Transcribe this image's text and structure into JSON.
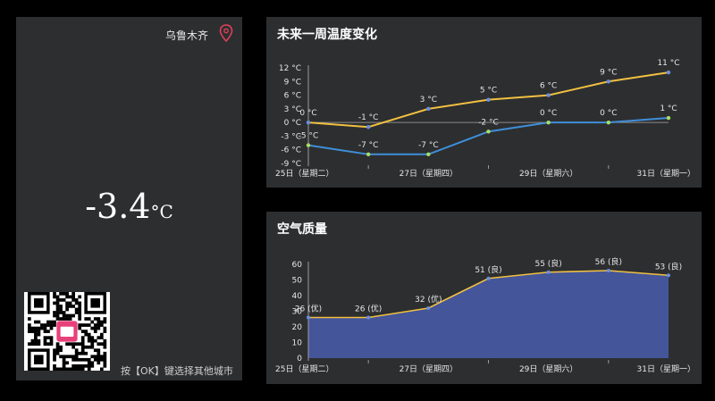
{
  "city": "乌鲁木齐",
  "current_temp": {
    "value": "-3.4",
    "unit": "°C"
  },
  "hint": "按【OK】键选择其他城市",
  "forecast": {
    "title": "未来一周温度变化"
  },
  "air": {
    "title": "空气质量"
  },
  "colors": {
    "high_line": "#f0c040",
    "low_line": "#3f8fd8",
    "aqi_fill": "#44559a",
    "aqi_line": "#f0c040",
    "panel": "#2d2e30"
  },
  "icons": {
    "location": "location-pin-icon",
    "qr": "qr-code"
  },
  "chart_data": [
    {
      "type": "line",
      "title": "未来一周温度变化",
      "x_tick_labels": [
        "25日（星期二）",
        "27日（星期四）",
        "29日（星期六）",
        "31日（星期一）"
      ],
      "y_tick_labels": [
        "12 °C",
        "9 °C",
        "6 °C",
        "3 °C",
        "0 °C",
        "-3 °C",
        "-6 °C",
        "-9 °C"
      ],
      "ylim": [
        -9,
        12
      ],
      "series": [
        {
          "values": [
            0,
            -1,
            3,
            5,
            6,
            9,
            11
          ],
          "labels": [
            "0 °C",
            "-1 °C",
            "3 °C",
            "5 °C",
            "6 °C",
            "9 °C",
            "11 °C"
          ]
        },
        {
          "values": [
            -5,
            -7,
            -7,
            -2,
            0,
            0,
            1
          ],
          "labels": [
            "-5 °C",
            "-7 °C",
            "-7 °C",
            "-2 °C",
            "0 °C",
            "0 °C",
            "1 °C"
          ]
        }
      ]
    },
    {
      "type": "area",
      "title": "空气质量",
      "x_tick_labels": [
        "25日（星期二）",
        "27日（星期四）",
        "29日（星期六）",
        "31日（星期一）"
      ],
      "y_tick_labels": [
        "60",
        "50",
        "40",
        "30",
        "20",
        "10",
        "0"
      ],
      "ylim": [
        0,
        60
      ],
      "values": [
        26,
        26,
        32,
        51,
        55,
        56,
        53
      ],
      "labels": [
        "26 (优)",
        "26 (优)",
        "32 (优)",
        "51 (良)",
        "55 (良)",
        "56 (良)",
        "53 (良)"
      ]
    }
  ]
}
